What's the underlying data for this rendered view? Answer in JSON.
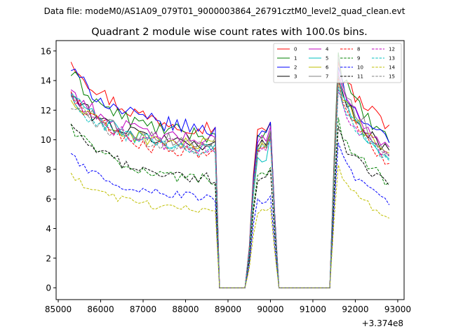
{
  "chart_data": {
    "type": "line",
    "suptitle": "Data file: modeM0/AS1A09_079T01_9000003864_26791cztM0_level2_quad_clean.evt",
    "title": "Quadrant 2 module wise count rates with 100.0s bins.",
    "xlabel": "",
    "ylabel": "",
    "x_offset_label": "+3.374e8",
    "xlim": [
      84950,
      93150
    ],
    "ylim": [
      -0.8,
      16.7
    ],
    "xticks": [
      85000,
      86000,
      87000,
      88000,
      89000,
      90000,
      91000,
      92000,
      93000
    ],
    "xtick_labels": [
      "85000",
      "86000",
      "87000",
      "88000",
      "89000",
      "90000",
      "91000",
      "92000",
      "93000"
    ],
    "yticks": [
      0,
      2,
      4,
      6,
      8,
      10,
      12,
      14,
      16
    ],
    "ytick_labels": [
      "0",
      "2",
      "4",
      "6",
      "8",
      "10",
      "12",
      "14",
      "16"
    ],
    "grid": false,
    "legend_position": "top-right",
    "x": [
      85300,
      85400,
      85500,
      85600,
      85700,
      85800,
      85900,
      86000,
      86100,
      86200,
      86300,
      86400,
      86500,
      86600,
      86700,
      86800,
      86900,
      87000,
      87100,
      87200,
      87300,
      87400,
      87500,
      87600,
      87700,
      87800,
      87900,
      88000,
      88100,
      88200,
      88300,
      88400,
      88500,
      88600,
      88700,
      88800,
      88900,
      89000,
      89100,
      89200,
      89300,
      89400,
      89500,
      89600,
      89700,
      89800,
      89900,
      90000,
      90100,
      90200,
      90300,
      90400,
      90500,
      90600,
      90700,
      90800,
      90900,
      91000,
      91100,
      91200,
      91300,
      91400,
      91500,
      91600,
      91700,
      91800,
      91900,
      92000,
      92100,
      92200,
      92300,
      92400,
      92500,
      92600,
      92700,
      92800
    ],
    "gaps": [
      {
        "start": 88800,
        "end": 89400,
        "value": 0
      },
      {
        "start": 90300,
        "end": 91400,
        "value": 0
      }
    ],
    "segments": [
      {
        "start": 85300,
        "end": 88700
      },
      {
        "start": 89700,
        "end": 90000
      },
      {
        "start": 91600,
        "end": 92800
      }
    ],
    "series": [
      {
        "name": "0",
        "color": "#ff0000",
        "dashed": false,
        "seg1_start": 15.5,
        "seg1_end": 10.8,
        "seg2": [
          10.7,
          10.8,
          10.6,
          11.2
        ],
        "seg3_peak": 15.3,
        "seg3_end": 11.0
      },
      {
        "name": "1",
        "color": "#008000",
        "dashed": false,
        "seg1_start": 14.5,
        "seg1_end": 10.3,
        "seg2": [
          10.3,
          10.1,
          10.6,
          11.1
        ],
        "seg3_peak": 15.9,
        "seg3_end": 9.8
      },
      {
        "name": "2",
        "color": "#0000ff",
        "dashed": false,
        "seg1_start": 14.8,
        "seg1_end": 10.7,
        "seg2": [
          10.2,
          10.6,
          10.5,
          11.2
        ],
        "seg3_peak": 14.9,
        "seg3_end": 9.8
      },
      {
        "name": "3",
        "color": "#000000",
        "dashed": false,
        "seg1_start": 13.0,
        "seg1_end": 9.7,
        "seg2": [
          9.5,
          10.0,
          9.6,
          10.6
        ],
        "seg3_peak": 14.2,
        "seg3_end": 9.3
      },
      {
        "name": "4",
        "color": "#bf00bf",
        "dashed": false,
        "seg1_start": 13.4,
        "seg1_end": 9.9,
        "seg2": [
          9.8,
          10.3,
          9.9,
          10.9
        ],
        "seg3_peak": 14.6,
        "seg3_end": 9.5
      },
      {
        "name": "5",
        "color": "#00bfbf",
        "dashed": false,
        "seg1_start": 13.2,
        "seg1_end": 9.4,
        "seg2": [
          8.8,
          8.5,
          8.6,
          10.3
        ],
        "seg3_peak": 14.4,
        "seg3_end": 8.7
      },
      {
        "name": "6",
        "color": "#bfbf00",
        "dashed": false,
        "seg1_start": 12.6,
        "seg1_end": 9.6,
        "seg2": [
          9.2,
          9.8,
          9.5,
          10.4
        ],
        "seg3_peak": 14.0,
        "seg3_end": 9.1
      },
      {
        "name": "7",
        "color": "#808080",
        "dashed": false,
        "seg1_start": 12.9,
        "seg1_end": 9.8,
        "seg2": [
          9.6,
          9.9,
          9.7,
          10.6
        ],
        "seg3_peak": 15.6,
        "seg3_end": 9.0
      },
      {
        "name": "8",
        "color": "#ff0000",
        "dashed": true,
        "seg1_start": 13.1,
        "seg1_end": 9.0,
        "seg2": [
          9.3,
          9.5,
          9.4,
          10.1
        ],
        "seg3_peak": 14.3,
        "seg3_end": 8.4
      },
      {
        "name": "9",
        "color": "#008000",
        "dashed": true,
        "seg1_start": 10.9,
        "seg1_end": 7.3,
        "seg2": [
          7.6,
          7.8,
          7.6,
          8.1
        ],
        "seg3_peak": 11.5,
        "seg3_end": 7.1
      },
      {
        "name": "10",
        "color": "#0000ff",
        "dashed": true,
        "seg1_start": 8.9,
        "seg1_end": 6.1,
        "seg2": [
          6.0,
          5.7,
          5.8,
          6.2
        ],
        "seg3_peak": 9.8,
        "seg3_end": 5.6
      },
      {
        "name": "11",
        "color": "#000000",
        "dashed": true,
        "seg1_start": 10.8,
        "seg1_end": 7.4,
        "seg2": [
          7.2,
          7.4,
          7.5,
          8.0
        ],
        "seg3_peak": 10.9,
        "seg3_end": 6.9
      },
      {
        "name": "12",
        "color": "#bf00bf",
        "dashed": true,
        "seg1_start": 12.8,
        "seg1_end": 9.4,
        "seg2": [
          9.1,
          9.4,
          9.3,
          10.2
        ],
        "seg3_peak": 13.4,
        "seg3_end": 8.9
      },
      {
        "name": "13",
        "color": "#00bfbf",
        "dashed": true,
        "seg1_start": 12.7,
        "seg1_end": 9.3,
        "seg2": [
          9.4,
          9.6,
          9.5,
          10.0
        ],
        "seg3_peak": 13.6,
        "seg3_end": 8.6
      },
      {
        "name": "14",
        "color": "#bfbf00",
        "dashed": true,
        "seg1_start": 7.5,
        "seg1_end": 5.3,
        "seg2": [
          5.0,
          5.3,
          5.2,
          5.4
        ],
        "seg3_peak": 8.3,
        "seg3_end": 4.7
      },
      {
        "name": "15",
        "color": "#808080",
        "dashed": true,
        "seg1_start": 12.5,
        "seg1_end": 9.4,
        "seg2": [
          9.1,
          9.7,
          9.4,
          10.4
        ],
        "seg3_peak": 14.0,
        "seg3_end": 8.9
      }
    ]
  }
}
